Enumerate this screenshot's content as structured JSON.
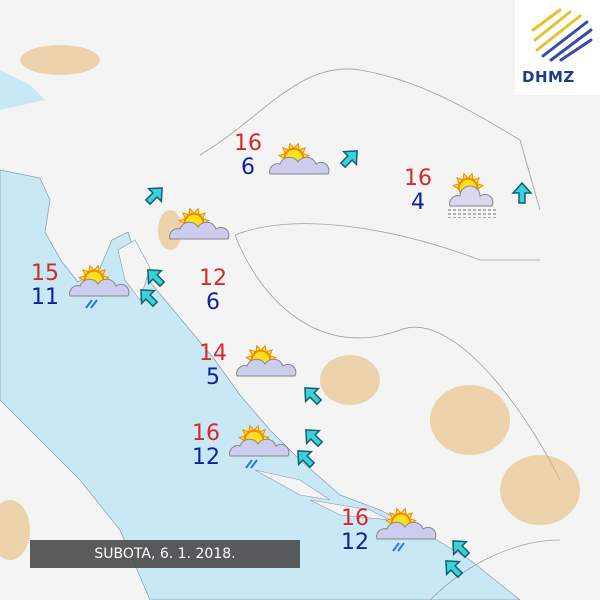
{
  "logo": {
    "text": "DHMZ"
  },
  "date_label": "SUBOTA, 6. 1. 2018.",
  "colors": {
    "sea": "#c8e8f6",
    "land": "#f4f4f4",
    "max_temp": "#d42a2a",
    "min_temp": "#1020a0",
    "arrow": "#3cd0d8"
  },
  "stations": [
    {
      "max": "16",
      "min": "6",
      "icon": "partly-cloudy"
    },
    {
      "max": "16",
      "min": "4",
      "icon": "sun-fog"
    },
    {
      "max": "",
      "min": "",
      "icon": "partly-cloudy"
    },
    {
      "max": "15",
      "min": "11",
      "icon": "partly-cloudy-rain"
    },
    {
      "max": "12",
      "min": "6",
      "icon": ""
    },
    {
      "max": "14",
      "min": "5",
      "icon": "partly-cloudy"
    },
    {
      "max": "16",
      "min": "12",
      "icon": "partly-cloudy-rain"
    },
    {
      "max": "16",
      "min": "12",
      "icon": "partly-cloudy-rain"
    }
  ],
  "wind_arrows": [
    "northeast",
    "northeast",
    "north",
    "northwest",
    "northwest",
    "northwest",
    "northwest",
    "northwest",
    "northwest",
    "northwest"
  ]
}
